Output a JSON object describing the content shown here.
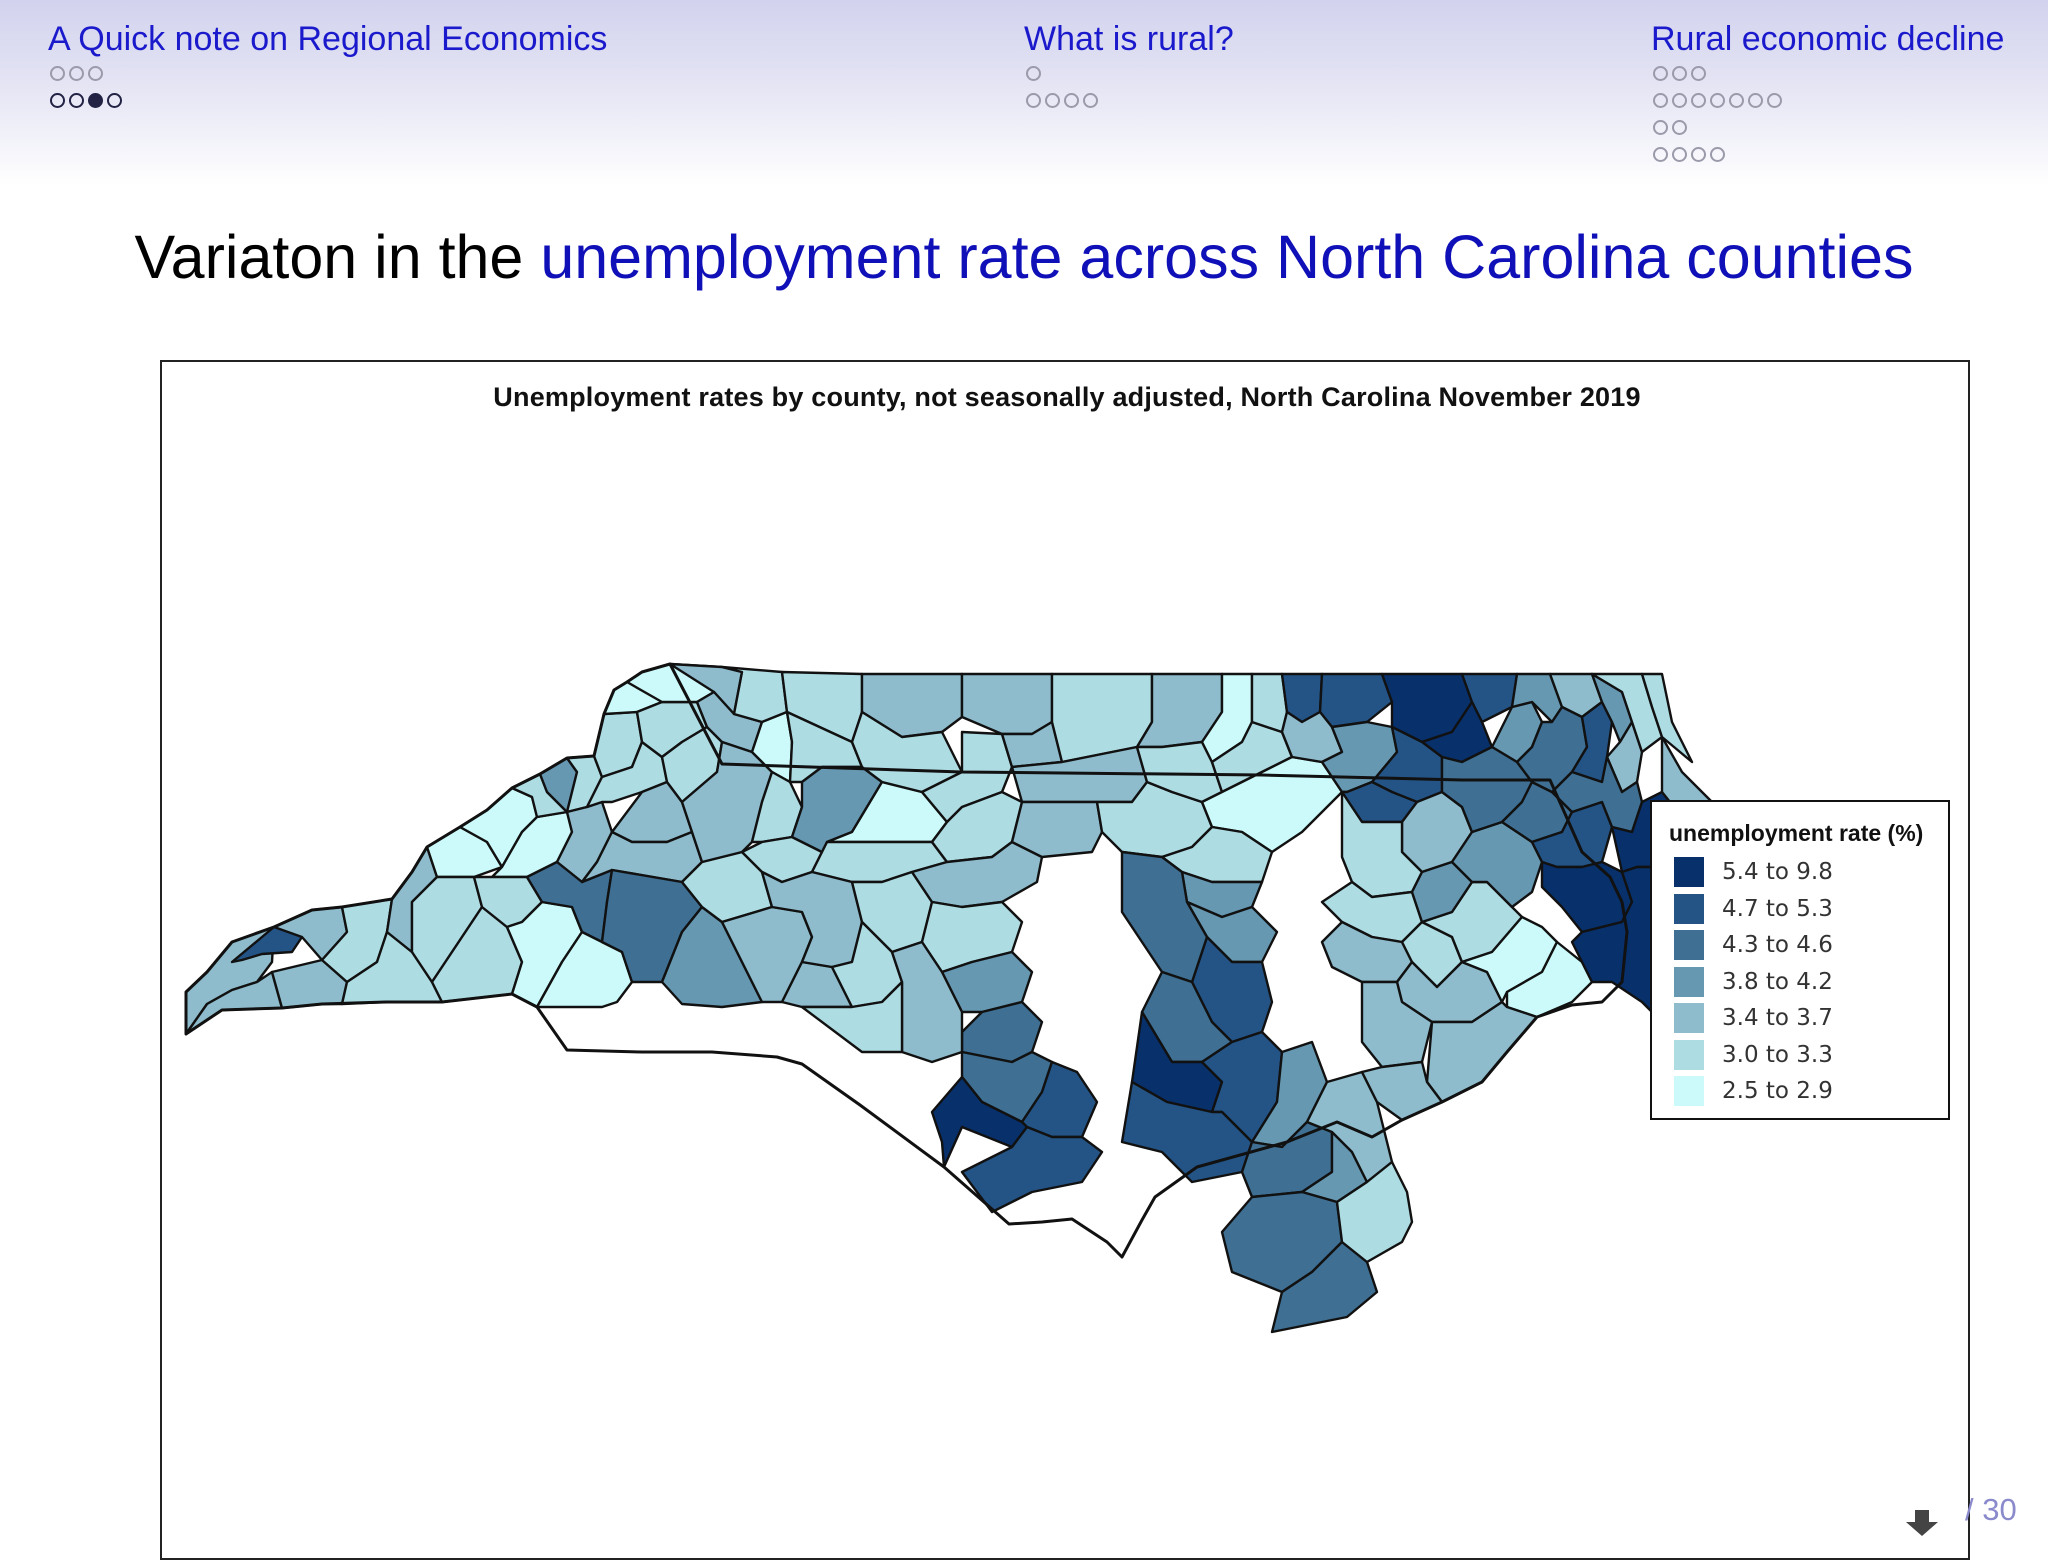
{
  "header": {
    "sections": [
      {
        "title": "A Quick note on Regional Economics",
        "subsections": [
          3,
          4
        ],
        "active_row": 1,
        "active_index": 2
      },
      {
        "title": "What is rural?",
        "subsections": [
          1,
          4
        ]
      },
      {
        "title": "Rural economic decline",
        "subsections": [
          3,
          7,
          2,
          4
        ]
      }
    ]
  },
  "frame": {
    "title_plain": "Variaton in the ",
    "title_highlight": "unemployment rate across North Carolina counties"
  },
  "chart_data": {
    "type": "choropleth",
    "title": "Unemployment rates by county, not seasonally adjusted, North Carolina November 2019",
    "legend_title": "unemployment rate (%)",
    "legend_placement": "right",
    "bins": [
      {
        "label": "5.4 to 9.8",
        "color": "#08306b"
      },
      {
        "label": "4.7 to 5.3",
        "color": "#245486"
      },
      {
        "label": "4.3 to 4.6",
        "color": "#3f6f92"
      },
      {
        "label": "3.8 to 4.2",
        "color": "#6798b2"
      },
      {
        "label": "3.4 to 3.7",
        "color": "#8ebccc"
      },
      {
        "label": "3.0 to 3.3",
        "color": "#aedce3"
      },
      {
        "label": "2.5 to 2.9",
        "color": "#ccfafa"
      }
    ]
  },
  "footer": {
    "page_label": "/ 30"
  }
}
